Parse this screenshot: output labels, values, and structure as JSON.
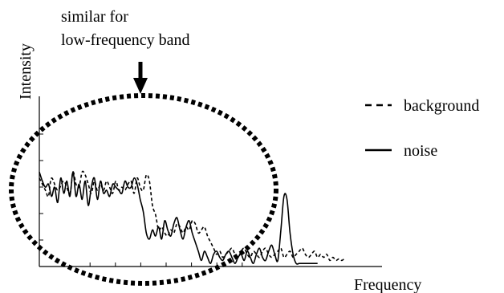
{
  "chart_data": {
    "type": "line",
    "xlabel": "Frequency",
    "ylabel": "Intensity",
    "xlim": [
      0,
      100
    ],
    "ylim": [
      0,
      100
    ],
    "grid": false,
    "legend_placement": "right",
    "annotation": {
      "text_line1": "similar for",
      "text_line2": "low-frequency band",
      "arrow_target": "low-frequency band"
    },
    "series": [
      {
        "name": "background",
        "style": "dashed",
        "x": [
          0,
          2,
          3,
          4,
          6,
          8,
          10,
          11,
          12,
          13,
          14,
          15,
          16,
          17,
          18,
          19,
          20,
          21,
          22,
          23,
          24,
          25,
          26,
          27,
          28,
          29,
          30,
          31,
          32,
          33,
          34,
          35,
          36,
          37,
          38,
          39,
          40,
          41,
          42,
          43,
          44,
          45,
          46,
          47,
          48,
          49,
          50,
          51,
          52,
          53,
          54,
          55,
          56,
          57,
          58,
          59,
          60,
          61,
          62,
          63,
          64,
          65,
          66,
          67,
          68,
          69,
          70,
          71,
          72,
          73,
          74,
          75,
          76,
          77,
          78,
          79,
          80,
          81,
          82,
          83,
          84,
          85,
          86,
          87,
          88,
          89,
          90,
          91,
          92,
          93,
          94,
          95,
          96,
          97,
          98,
          99,
          100
        ],
        "y": [
          58,
          50,
          46,
          58,
          50,
          56,
          48,
          62,
          54,
          52,
          62,
          60,
          54,
          48,
          56,
          50,
          54,
          50,
          56,
          52,
          48,
          56,
          50,
          52,
          50,
          54,
          56,
          48,
          58,
          52,
          50,
          60,
          56,
          40,
          34,
          24,
          26,
          22,
          20,
          24,
          22,
          28,
          26,
          22,
          26,
          24,
          30,
          28,
          22,
          24,
          26,
          20,
          16,
          12,
          8,
          10,
          6,
          8,
          10,
          12,
          8,
          6,
          10,
          12,
          8,
          6,
          10,
          8,
          6,
          10,
          12,
          8,
          6,
          8,
          10,
          12,
          6,
          8,
          10,
          6,
          8,
          10,
          12,
          8,
          6,
          8,
          10,
          6,
          8,
          6,
          8,
          4,
          6,
          4,
          5,
          4,
          6
        ]
      },
      {
        "name": "noise",
        "style": "solid",
        "x": [
          0,
          1,
          2,
          3,
          4,
          5,
          6,
          7,
          8,
          9,
          10,
          11,
          12,
          13,
          14,
          15,
          16,
          17,
          18,
          19,
          20,
          21,
          22,
          23,
          24,
          25,
          26,
          27,
          28,
          29,
          30,
          31,
          32,
          33,
          34,
          35,
          36,
          37,
          38,
          39,
          40,
          41,
          42,
          43,
          44,
          45,
          46,
          47,
          48,
          49,
          50,
          51,
          52,
          53,
          54,
          55,
          56,
          57,
          58,
          59,
          60,
          61,
          62,
          63,
          64,
          65,
          66,
          67,
          68,
          69,
          70,
          71,
          72,
          73,
          74,
          75,
          76,
          77,
          78,
          79,
          80,
          81,
          82,
          83,
          84,
          85,
          86,
          87,
          88,
          89,
          90,
          91
        ],
        "y": [
          62,
          56,
          52,
          54,
          46,
          52,
          42,
          58,
          48,
          56,
          46,
          62,
          46,
          54,
          44,
          56,
          40,
          52,
          58,
          44,
          56,
          48,
          50,
          46,
          54,
          52,
          50,
          48,
          56,
          52,
          52,
          58,
          54,
          44,
          36,
          22,
          18,
          24,
          20,
          26,
          18,
          30,
          24,
          20,
          28,
          32,
          24,
          18,
          26,
          30,
          22,
          16,
          10,
          4,
          10,
          6,
          2,
          8,
          10,
          6,
          4,
          8,
          10,
          6,
          2,
          6,
          8,
          4,
          10,
          6,
          2,
          8,
          12,
          6,
          4,
          10,
          14,
          8,
          4,
          24,
          46,
          44,
          22,
          8,
          2,
          2,
          2,
          2,
          2,
          2,
          2,
          2
        ]
      }
    ]
  }
}
